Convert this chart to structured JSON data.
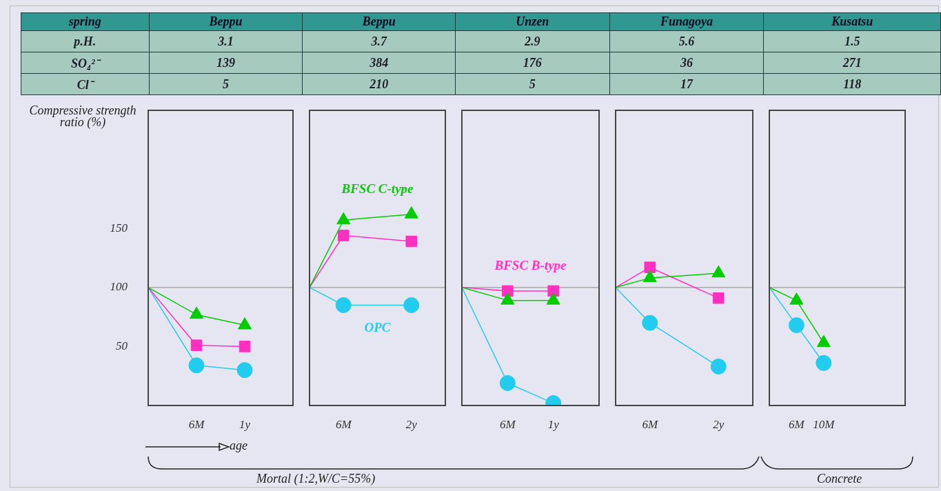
{
  "chart_data": [
    {
      "type": "other",
      "data_labels": true,
      "xlabel": "spring",
      "categories": [
        "Beppu",
        "Beppu",
        "Unzen",
        "Funagoya",
        "Kusatsu"
      ],
      "series": [
        {
          "name": "p.H.",
          "values": [
            3.1,
            3.7,
            2.9,
            5.6,
            1.5
          ]
        },
        {
          "name": "SO₄²⁻",
          "values": [
            139,
            384,
            176,
            36,
            271
          ]
        },
        {
          "name": "Cl⁻",
          "values": [
            5,
            210,
            5,
            17,
            118
          ]
        }
      ]
    },
    {
      "type": "line",
      "ylabel": "Compressive strength ratio (%)",
      "categories": [
        null,
        "6M",
        "1y",
        null
      ],
      "ylim": [
        0,
        250
      ],
      "yticks": [
        50,
        100,
        150
      ],
      "ref_lines": [
        {
          "axis": "y",
          "value": 100
        }
      ],
      "annotations": [
        "age",
        "Mortal (1:2,W/C=55%)"
      ],
      "series": [
        {
          "color": "#00cc00",
          "marker": "triangle",
          "values": [
            100,
            77,
            68,
            null
          ]
        },
        {
          "color": "#ff2fc0",
          "marker": "square",
          "values": [
            100,
            51,
            50,
            null
          ]
        },
        {
          "color": "#22ccee",
          "marker": "circle",
          "values": [
            100,
            34,
            30,
            null
          ]
        }
      ]
    },
    {
      "type": "line",
      "tick_labels": "x",
      "categories": [
        null,
        "6M",
        null,
        "2y",
        null
      ],
      "ylim": [
        0,
        250
      ],
      "yticks": [
        50,
        100,
        150
      ],
      "ref_lines": [
        {
          "axis": "y",
          "value": 100
        }
      ],
      "series": [
        {
          "name": "BFSC C-type",
          "color": "#00cc00",
          "marker": "triangle",
          "values": [
            100,
            157,
            null,
            162,
            null
          ]
        },
        {
          "color": "#ff2fc0",
          "marker": "square",
          "values": [
            100,
            144,
            null,
            139,
            null
          ]
        },
        {
          "name": "OPC",
          "color": "#22ccee",
          "marker": "circle",
          "values": [
            100,
            85,
            null,
            85,
            null
          ]
        }
      ]
    },
    {
      "type": "line",
      "tick_labels": "x",
      "categories": [
        null,
        "6M",
        "1y",
        null
      ],
      "ylim": [
        0,
        250
      ],
      "yticks": [
        50,
        100,
        150
      ],
      "ref_lines": [
        {
          "axis": "y",
          "value": 100
        }
      ],
      "series": [
        {
          "color": "#00cc00",
          "marker": "triangle",
          "values": [
            100,
            89,
            89,
            null
          ]
        },
        {
          "name": "BFSC B-type",
          "color": "#ff2fc0",
          "marker": "square",
          "values": [
            100,
            97,
            97,
            null
          ]
        },
        {
          "color": "#22ccee",
          "marker": "circle",
          "values": [
            100,
            19,
            2,
            null
          ]
        }
      ]
    },
    {
      "type": "line",
      "tick_labels": "x",
      "categories": [
        null,
        "6M",
        null,
        "2y",
        null
      ],
      "ylim": [
        0,
        250
      ],
      "yticks": [
        50,
        100,
        150
      ],
      "ref_lines": [
        {
          "axis": "y",
          "value": 100
        }
      ],
      "series": [
        {
          "color": "#00cc00",
          "marker": "triangle",
          "values": [
            100,
            108,
            null,
            112,
            null
          ]
        },
        {
          "color": "#ff2fc0",
          "marker": "square",
          "values": [
            100,
            117,
            null,
            91,
            null
          ]
        },
        {
          "color": "#22ccee",
          "marker": "circle",
          "values": [
            100,
            70,
            null,
            33,
            null
          ]
        }
      ]
    },
    {
      "type": "line",
      "tick_labels": "x",
      "categories": [
        null,
        "6M",
        "10M",
        null,
        null,
        null
      ],
      "ylim": [
        0,
        250
      ],
      "yticks": [
        50,
        100,
        150
      ],
      "ref_lines": [
        {
          "axis": "y",
          "value": 100
        }
      ],
      "annotations": [
        "Concrete"
      ],
      "series": [
        {
          "color": "#00cc00",
          "marker": "triangle",
          "values": [
            100,
            89,
            53,
            null,
            null,
            null
          ]
        },
        {
          "color": "#22ccee",
          "marker": "circle",
          "values": [
            100,
            68,
            36,
            null,
            null,
            null
          ]
        }
      ]
    }
  ]
}
